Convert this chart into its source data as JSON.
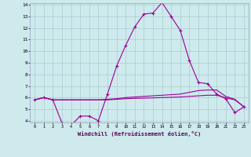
{
  "xlabel": "Windchill (Refroidissement éolien,°C)",
  "background_color": "#ceeaec",
  "grid_color": "#aacdd0",
  "line_color": "#990099",
  "x": [
    0,
    1,
    2,
    3,
    4,
    5,
    6,
    7,
    8,
    9,
    10,
    11,
    12,
    13,
    14,
    15,
    16,
    17,
    18,
    19,
    20,
    21,
    22,
    23
  ],
  "y_main": [
    5.8,
    6.0,
    5.8,
    3.8,
    3.6,
    4.4,
    4.4,
    4.0,
    6.3,
    8.7,
    10.5,
    12.1,
    13.2,
    13.3,
    14.2,
    13.0,
    11.8,
    9.2,
    7.3,
    7.2,
    6.3,
    5.9,
    4.7,
    5.2
  ],
  "y_line2": [
    5.8,
    6.0,
    5.8,
    5.8,
    5.8,
    5.8,
    5.8,
    5.8,
    5.85,
    5.9,
    6.0,
    6.05,
    6.1,
    6.15,
    6.2,
    6.25,
    6.3,
    6.45,
    6.6,
    6.65,
    6.65,
    6.1,
    5.85,
    5.2
  ],
  "y_line3": [
    5.8,
    6.0,
    5.8,
    5.8,
    5.8,
    5.8,
    5.8,
    5.8,
    5.8,
    5.85,
    5.9,
    5.93,
    5.95,
    5.97,
    6.0,
    6.02,
    6.05,
    6.1,
    6.15,
    6.2,
    6.2,
    5.98,
    5.8,
    5.2
  ],
  "ylim_min": 4,
  "ylim_max": 14,
  "xlim_min": 0,
  "xlim_max": 23,
  "yticks": [
    4,
    5,
    6,
    7,
    8,
    9,
    10,
    11,
    12,
    13,
    14
  ],
  "xticks": [
    0,
    1,
    2,
    3,
    4,
    5,
    6,
    7,
    8,
    9,
    10,
    11,
    12,
    13,
    14,
    15,
    16,
    17,
    18,
    19,
    20,
    21,
    22,
    23
  ]
}
